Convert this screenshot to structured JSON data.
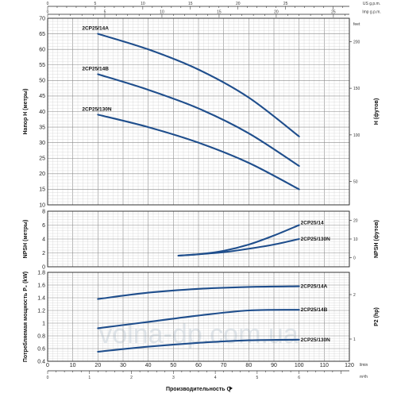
{
  "watermark": "volna-dp.com.ua",
  "top_scales": {
    "us_label": "US g.p.m.",
    "us_ticks": [
      "0",
      "5",
      "10",
      "15",
      "20",
      "25"
    ],
    "imp_label": "Imp g.p.m.",
    "imp_ticks": [
      "0",
      "5",
      "10",
      "15",
      "20",
      "25"
    ]
  },
  "bottom_axis": {
    "title": "Производительность Q",
    "lmin_unit": "l/min",
    "lmin_ticks": [
      "0",
      "10",
      "20",
      "30",
      "40",
      "50",
      "60",
      "70",
      "80",
      "90",
      "100",
      "110",
      "120"
    ],
    "m3h_unit": "m³/h",
    "m3h_ticks": [
      "0",
      "1",
      "2",
      "3",
      "4",
      "5",
      "6"
    ]
  },
  "chart_data": [
    {
      "type": "line",
      "id": "head",
      "ylabel": "Напор H (метры)",
      "y2label": "H (футов)",
      "y2unit": "feet",
      "xlim": [
        0,
        120
      ],
      "ylim": [
        10,
        70
      ],
      "yticks": [
        "10",
        "15",
        "20",
        "25",
        "30",
        "35",
        "40",
        "45",
        "50",
        "55",
        "60",
        "65",
        "70"
      ],
      "y2ticks": [
        "50",
        "100",
        "150",
        "200"
      ],
      "grid": true,
      "series": [
        {
          "name": "2CP25/14A",
          "x": [
            20,
            40,
            60,
            80,
            100
          ],
          "y": [
            65,
            60,
            53.5,
            44.5,
            32
          ]
        },
        {
          "name": "2CP25/14B",
          "x": [
            20,
            40,
            60,
            80,
            100
          ],
          "y": [
            52,
            47,
            41,
            33,
            22.5
          ]
        },
        {
          "name": "2CP25/130N",
          "x": [
            20,
            40,
            60,
            80,
            100
          ],
          "y": [
            39,
            35,
            30,
            23.5,
            15
          ]
        }
      ]
    },
    {
      "type": "line",
      "id": "npsh",
      "ylabel": "NPSH (метры)",
      "y2label": "NPSH (футов)",
      "xlim": [
        0,
        120
      ],
      "ylim": [
        0,
        8
      ],
      "yticks": [
        "0",
        "2",
        "4",
        "6",
        "8"
      ],
      "y2ticks": [
        "0",
        "10",
        "20"
      ],
      "grid": true,
      "series": [
        {
          "name": "2CP25/14",
          "x": [
            52,
            60,
            70,
            80,
            90,
            100
          ],
          "y": [
            1.6,
            1.8,
            2.3,
            3.2,
            4.5,
            6.0
          ]
        },
        {
          "name": "2CP25/130N",
          "x": [
            52,
            60,
            70,
            80,
            90,
            100
          ],
          "y": [
            1.6,
            1.8,
            2.1,
            2.6,
            3.2,
            4.0
          ]
        }
      ]
    },
    {
      "type": "line",
      "id": "power",
      "ylabel": "Потребляемая мощность P₂ (kW)",
      "y2label": "P2 (hp)",
      "xlim": [
        0,
        120
      ],
      "ylim": [
        0.4,
        1.8
      ],
      "yticks": [
        "0.4",
        "0.6",
        "0.8",
        "1",
        "1.2",
        "1.4",
        "1.6",
        "1.8"
      ],
      "y2ticks": [
        "1",
        "2"
      ],
      "grid": true,
      "series": [
        {
          "name": "2CP25/14A",
          "x": [
            20,
            40,
            60,
            80,
            100
          ],
          "y": [
            1.38,
            1.48,
            1.54,
            1.57,
            1.58
          ]
        },
        {
          "name": "2CP25/14B",
          "x": [
            20,
            40,
            60,
            80,
            100
          ],
          "y": [
            0.92,
            1.02,
            1.12,
            1.2,
            1.21
          ]
        },
        {
          "name": "2CP25/130N",
          "x": [
            20,
            40,
            60,
            80,
            100
          ],
          "y": [
            0.55,
            0.63,
            0.69,
            0.73,
            0.74
          ]
        }
      ]
    }
  ]
}
